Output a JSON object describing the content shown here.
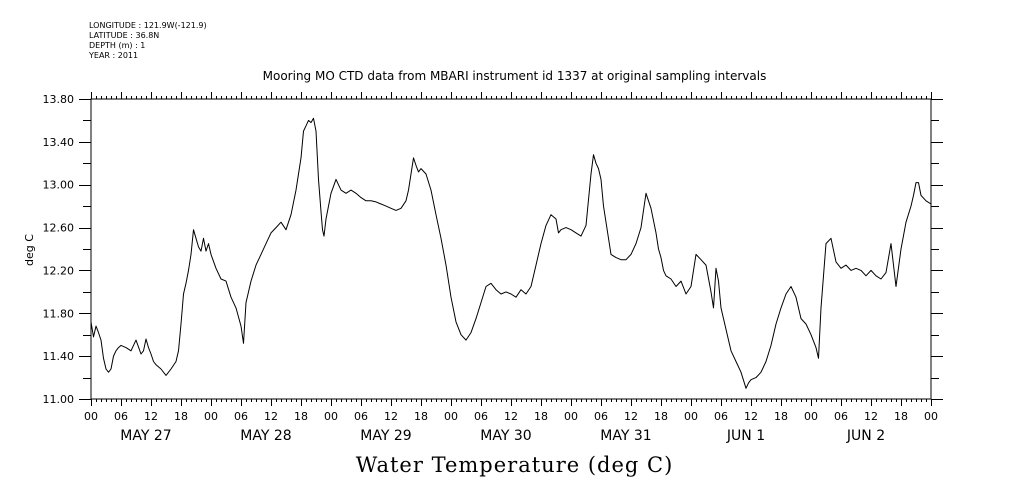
{
  "header": {
    "longitude": "LONGITUDE : 121.9W(-121.9)",
    "latitude": "LATITUDE : 36.8N",
    "depth": "DEPTH (m) : 1",
    "year": "YEAR : 2011"
  },
  "chart_data": {
    "type": "line",
    "title": "Mooring MO CTD data from MBARI instrument id 1337 at original sampling intervals",
    "xlabel": "Water Temperature (deg C)",
    "ylabel": "deg C",
    "ylim": [
      11.0,
      13.8
    ],
    "yticks": [
      "11.00",
      "11.40",
      "11.80",
      "12.20",
      "12.60",
      "13.00",
      "13.40",
      "13.80"
    ],
    "xlim_hours": [
      0,
      168
    ],
    "x_hour_ticks": [
      "00",
      "06",
      "12",
      "18",
      "00",
      "06",
      "12",
      "18",
      "00",
      "06",
      "12",
      "18",
      "00",
      "06",
      "12",
      "18",
      "00",
      "06",
      "12",
      "18",
      "00",
      "06",
      "12",
      "18",
      "00",
      "06",
      "12",
      "18",
      "00"
    ],
    "day_labels": [
      "MAY 27",
      "MAY 28",
      "MAY 29",
      "MAY 30",
      "MAY 31",
      "JUN  1",
      "JUN  2"
    ],
    "grid": false,
    "series": [
      {
        "x": [
          0,
          0.5,
          1,
          1.5,
          2,
          2.5,
          3,
          3.5,
          4,
          4.5,
          5,
          5.5,
          6,
          7,
          8,
          9,
          10,
          10.5,
          11,
          11.5,
          12,
          12.5,
          13,
          14,
          15,
          16,
          17,
          17.5,
          18,
          18.5,
          19,
          19.5,
          20,
          20.5,
          21,
          21.5,
          22,
          22.5,
          23,
          23.5,
          24,
          25,
          26,
          27,
          28,
          29,
          30,
          30.5,
          31,
          32,
          33,
          34,
          35,
          36,
          37,
          38,
          39,
          40,
          41,
          41.5,
          42,
          42.5,
          43,
          43.5,
          44,
          44.5,
          45,
          45.5,
          46,
          46.3,
          46.6,
          47,
          47.5,
          48,
          49,
          50,
          51,
          52,
          53,
          54,
          55,
          56,
          57,
          58,
          59,
          60,
          61,
          62,
          63,
          63.5,
          64,
          64.5,
          65,
          65.5,
          66,
          67,
          68,
          69,
          70,
          71,
          72,
          73,
          74,
          75,
          76,
          77,
          78,
          79,
          80,
          81,
          82,
          83,
          84,
          85,
          86,
          87,
          88,
          89,
          90,
          91,
          92,
          93,
          93.5,
          94,
          95,
          96,
          97,
          98,
          99,
          100,
          100.5,
          101,
          101.5,
          102,
          102.5,
          103,
          104,
          105,
          106,
          107,
          108,
          109,
          110,
          111,
          112,
          113,
          113.5,
          114,
          114.5,
          115,
          116,
          117,
          118,
          119,
          120,
          121,
          122,
          123,
          124,
          124.5,
          125,
          125.5,
          126,
          127,
          128,
          129,
          130,
          131,
          131.5,
          132,
          133,
          134,
          135,
          136,
          137,
          138,
          139,
          140,
          141,
          142,
          143,
          144,
          145,
          145.5,
          146,
          147,
          148,
          149,
          150,
          151,
          152,
          153,
          154,
          155,
          156,
          157,
          158,
          159,
          160,
          161,
          162,
          163,
          164,
          164.5,
          165,
          165.5,
          166,
          167,
          168
        ],
        "values": [
          11.72,
          11.58,
          11.68,
          11.62,
          11.55,
          11.38,
          11.28,
          11.25,
          11.28,
          11.4,
          11.45,
          11.48,
          11.5,
          11.48,
          11.45,
          11.55,
          11.42,
          11.45,
          11.56,
          11.48,
          11.42,
          11.35,
          11.32,
          11.28,
          11.22,
          11.28,
          11.35,
          11.45,
          11.7,
          11.98,
          12.08,
          12.2,
          12.35,
          12.58,
          12.5,
          12.42,
          12.38,
          12.5,
          12.38,
          12.45,
          12.35,
          12.22,
          12.12,
          12.1,
          11.95,
          11.85,
          11.68,
          11.52,
          11.9,
          12.1,
          12.25,
          12.35,
          12.45,
          12.55,
          12.6,
          12.65,
          12.58,
          12.72,
          12.95,
          13.1,
          13.25,
          13.5,
          13.55,
          13.6,
          13.58,
          13.62,
          13.5,
          13.05,
          12.75,
          12.58,
          12.52,
          12.68,
          12.8,
          12.92,
          13.05,
          12.95,
          12.92,
          12.95,
          12.92,
          12.88,
          12.85,
          12.85,
          12.84,
          12.82,
          12.8,
          12.78,
          12.76,
          12.78,
          12.85,
          12.95,
          13.1,
          13.25,
          13.18,
          13.12,
          13.15,
          13.1,
          12.95,
          12.72,
          12.5,
          12.25,
          11.95,
          11.72,
          11.6,
          11.55,
          11.62,
          11.75,
          11.9,
          12.05,
          12.08,
          12.02,
          11.98,
          12.0,
          11.98,
          11.95,
          12.02,
          11.98,
          12.05,
          12.25,
          12.45,
          12.62,
          12.72,
          12.68,
          12.55,
          12.58,
          12.6,
          12.58,
          12.55,
          12.52,
          12.62,
          13.1,
          13.28,
          13.2,
          13.15,
          13.05,
          12.8,
          12.65,
          12.35,
          12.32,
          12.3,
          12.3,
          12.35,
          12.45,
          12.6,
          12.92,
          12.78,
          12.55,
          12.4,
          12.32,
          12.2,
          12.15,
          12.12,
          12.05,
          12.1,
          11.98,
          12.05,
          12.35,
          12.3,
          12.25,
          12.0,
          11.85,
          12.22,
          12.1,
          11.85,
          11.65,
          11.45,
          11.35,
          11.25,
          11.1,
          11.15,
          11.18,
          11.2,
          11.25,
          11.35,
          11.5,
          11.7,
          11.85,
          11.98,
          12.05,
          11.95,
          11.75,
          11.7,
          11.6,
          11.48,
          11.38,
          11.85,
          12.45,
          12.5,
          12.28,
          12.22,
          12.25,
          12.2,
          12.22,
          12.2,
          12.15,
          12.2,
          12.15,
          12.12,
          12.18,
          12.45,
          12.05,
          12.4,
          12.65,
          12.8,
          12.9,
          13.02,
          13.02,
          12.9,
          12.85,
          12.82
        ]
      }
    ]
  }
}
